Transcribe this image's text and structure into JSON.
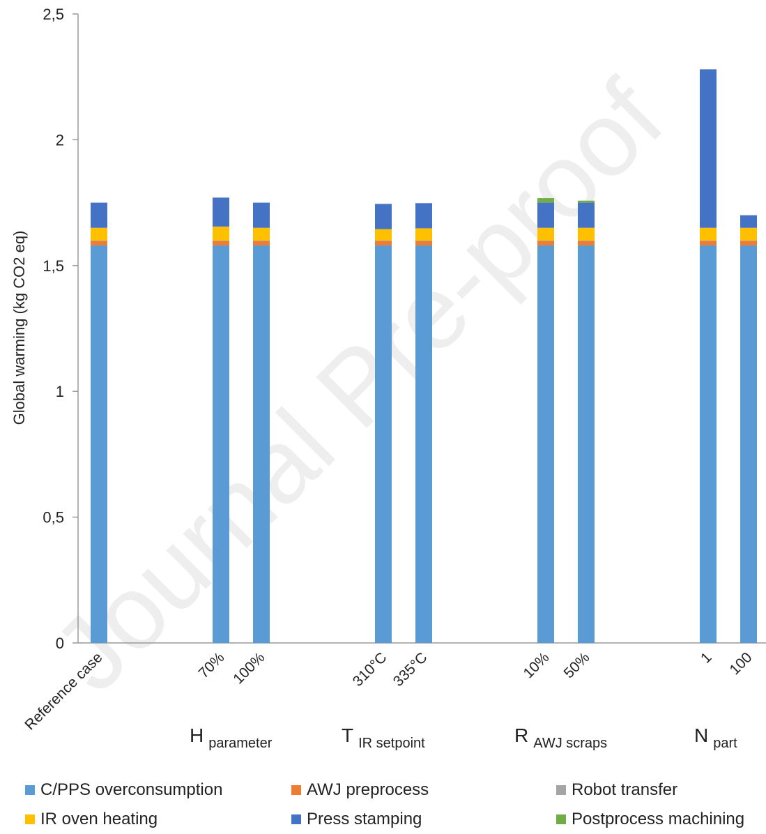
{
  "chart_data": {
    "type": "bar",
    "stacked": true,
    "ylabel": "Global warming (kg CO2 eq)",
    "ylim": [
      0,
      2.5
    ],
    "yticks": [
      "0",
      "0,5",
      "1",
      "1,5",
      "2",
      "2,5"
    ],
    "categories": [
      "Reference case",
      "70%",
      "100%",
      "310°C",
      "335°C",
      "10%",
      "50%",
      "1",
      "100"
    ],
    "groups": [
      {
        "label": "H",
        "sub": "parameter"
      },
      {
        "label": "T",
        "sub": "IR setpoint"
      },
      {
        "label": "R",
        "sub": "AWJ scraps"
      },
      {
        "label": "N",
        "sub": "part"
      }
    ],
    "series": [
      {
        "name": "C/PPS overconsumption",
        "color": "#5b9bd5",
        "values": [
          1.58,
          1.58,
          1.58,
          1.58,
          1.58,
          1.58,
          1.58,
          1.58,
          1.58
        ]
      },
      {
        "name": "AWJ preprocess",
        "color": "#ed7d31",
        "values": [
          0.018,
          0.018,
          0.018,
          0.018,
          0.018,
          0.018,
          0.018,
          0.018,
          0.018
        ]
      },
      {
        "name": "Robot transfer",
        "color": "#a5a5a5",
        "values": [
          0.002,
          0.002,
          0.002,
          0.002,
          0.002,
          0.002,
          0.002,
          0.002,
          0.002
        ]
      },
      {
        "name": "IR oven heating",
        "color": "#ffc000",
        "values": [
          0.05,
          0.055,
          0.05,
          0.045,
          0.048,
          0.05,
          0.05,
          0.05,
          0.05
        ]
      },
      {
        "name": "Press stamping",
        "color": "#4472c4",
        "values": [
          0.1,
          0.115,
          0.1,
          0.1,
          0.1,
          0.1,
          0.1,
          0.63,
          0.05
        ]
      },
      {
        "name": "Postprocess machining",
        "color": "#70ad47",
        "values": [
          0,
          0,
          0,
          0,
          0,
          0.018,
          0.008,
          0,
          0
        ]
      }
    ],
    "grid": false,
    "legend_position": "bottom"
  },
  "watermark": "Journal Pre-proof"
}
